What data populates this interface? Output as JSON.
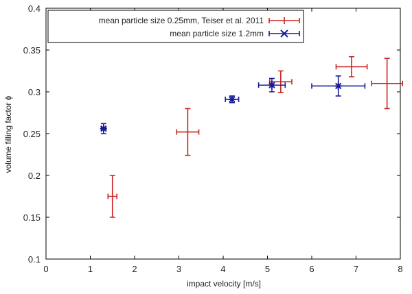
{
  "chart_data": {
    "type": "scatter",
    "xlabel": "impact velocity [m/s]",
    "ylabel": "volume filling factor  ϕ",
    "xlim": [
      0,
      8
    ],
    "ylim": [
      0.1,
      0.4
    ],
    "x_ticks": [
      0,
      1,
      2,
      3,
      4,
      5,
      6,
      7,
      8
    ],
    "y_ticks": [
      0.1,
      0.15,
      0.2,
      0.25,
      0.3,
      0.35,
      0.4
    ],
    "x_tick_labels": [
      "0",
      "1",
      "2",
      "3",
      "4",
      "5",
      "6",
      "7",
      "8"
    ],
    "y_tick_labels": [
      "0.1",
      "0.15",
      "0.2",
      "0.25",
      "0.3",
      "0.35",
      "0.4"
    ],
    "grid": false,
    "legend_position": "top-left",
    "series": [
      {
        "name": "mean particle size 0.25mm, Teiser et al. 2011",
        "color": "#cc2222",
        "marker": "plus",
        "points": [
          {
            "x": 1.5,
            "y": 0.175,
            "xerr": 0.1,
            "yerr": 0.025
          },
          {
            "x": 3.2,
            "y": 0.252,
            "xerr": 0.25,
            "yerr": 0.028
          },
          {
            "x": 5.3,
            "y": 0.312,
            "xerr": 0.25,
            "yerr": 0.013
          },
          {
            "x": 6.9,
            "y": 0.33,
            "xerr": 0.35,
            "yerr": 0.012
          },
          {
            "x": 7.7,
            "y": 0.31,
            "xerr": 0.35,
            "yerr": 0.03
          }
        ]
      },
      {
        "name": "mean particle size 1.2mm",
        "color": "#1a1a99",
        "marker": "asterisk",
        "points": [
          {
            "x": 1.3,
            "y": 0.256,
            "xerr": 0.05,
            "yerr": 0.006
          },
          {
            "x": 4.2,
            "y": 0.291,
            "xerr": 0.15,
            "yerr": 0.004
          },
          {
            "x": 5.1,
            "y": 0.308,
            "xerr": 0.3,
            "yerr": 0.008
          },
          {
            "x": 6.6,
            "y": 0.307,
            "xerr": 0.6,
            "yerr": 0.012
          }
        ]
      }
    ]
  }
}
